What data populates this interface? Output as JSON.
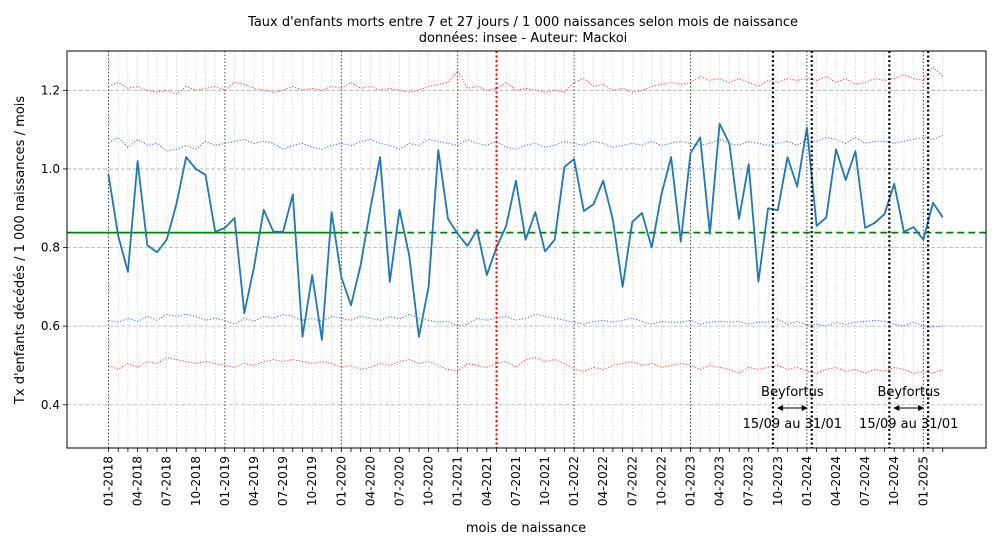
{
  "chart_data": {
    "type": "line",
    "title": "Taux d'enfants morts entre 7 et 27 jours / 1 000 naissances selon mois de naissance",
    "subtitle": "données: insee - Auteur: Mackoi",
    "xlabel": "mois de naissance",
    "ylabel": "Tx d'enfants décédés / 1 000 naissances / mois",
    "ylim": [
      0.29,
      1.3
    ],
    "yticks": [
      "0.4",
      "0.6",
      "0.8",
      "1.0",
      "1.2"
    ],
    "xtick_labels": [
      "01-2018",
      "04-2018",
      "07-2018",
      "10-2018",
      "01-2019",
      "04-2019",
      "07-2019",
      "10-2019",
      "01-2020",
      "04-2020",
      "07-2020",
      "10-2020",
      "01-2021",
      "04-2021",
      "07-2021",
      "10-2021",
      "01-2022",
      "04-2022",
      "07-2022",
      "10-2022",
      "01-2023",
      "04-2023",
      "07-2023",
      "10-2023",
      "01-2024",
      "04-2024",
      "07-2024",
      "10-2024",
      "01-2025"
    ],
    "grid": true,
    "colors": {
      "main": "#1f77b4",
      "mean": "#008000",
      "band_inner": "#4169e1",
      "band_outer": "#ff3b30",
      "marker_red": "#ff0000",
      "vlines": "#000000"
    },
    "mean_value": 0.838,
    "series": [
      {
        "values": [
          0.985,
          0.83,
          0.738,
          1.02,
          0.806,
          0.788,
          0.82,
          0.91,
          1.03,
          1.0,
          0.985,
          0.84,
          0.85,
          0.875,
          0.633,
          0.75,
          0.896,
          0.84,
          0.84,
          0.935,
          0.573,
          0.73,
          0.565,
          0.89,
          0.725,
          0.653,
          0.756,
          0.9,
          1.03,
          0.713,
          0.896,
          0.78,
          0.573,
          0.7,
          1.048,
          0.873,
          0.835,
          0.804,
          0.845,
          0.73,
          0.8,
          0.855,
          0.97,
          0.82,
          0.89,
          0.79,
          0.82,
          1.005,
          1.025,
          0.893,
          0.91,
          0.97,
          0.87,
          0.7,
          0.865,
          0.888,
          0.8,
          0.935,
          1.03,
          0.815,
          1.04,
          1.08,
          0.835,
          1.115,
          1.065,
          0.873,
          1.012,
          0.713,
          0.9,
          0.895,
          1.03,
          0.955,
          1.105,
          0.855,
          0.877,
          1.05,
          0.972,
          1.045,
          0.85,
          0.863,
          0.885,
          0.962,
          0.84,
          0.852,
          0.82,
          0.914,
          0.877
        ]
      },
      {
        "values": [
          1.065,
          1.08,
          1.055,
          1.075,
          1.06,
          1.065,
          1.045,
          1.05,
          1.06,
          1.05,
          1.07,
          1.06,
          1.065,
          1.07,
          1.075,
          1.065,
          1.07,
          1.065,
          1.05,
          1.06,
          1.065,
          1.055,
          1.05,
          1.06,
          1.065,
          1.06,
          1.07,
          1.075,
          1.065,
          1.06,
          1.05,
          1.065,
          1.06,
          1.075,
          1.07,
          1.065,
          1.06,
          1.075,
          1.065,
          1.06,
          1.07,
          1.055,
          1.05,
          1.06,
          1.065,
          1.055,
          1.06,
          1.07,
          1.065,
          1.06,
          1.07,
          1.065,
          1.055,
          1.06,
          1.065,
          1.06,
          1.07,
          1.06,
          1.065,
          1.07,
          1.065,
          1.06,
          1.065,
          1.075,
          1.065,
          1.06,
          1.07,
          1.065,
          1.06,
          1.065,
          1.07,
          1.06,
          1.075,
          1.07,
          1.08,
          1.075,
          1.065,
          1.08,
          1.065,
          1.07,
          1.07,
          1.065,
          1.07,
          1.075,
          1.08,
          1.075,
          1.085
        ]
      },
      {
        "values": [
          0.615,
          0.61,
          0.62,
          0.612,
          0.625,
          0.615,
          0.63,
          0.625,
          0.63,
          0.625,
          0.615,
          0.62,
          0.615,
          0.605,
          0.62,
          0.612,
          0.625,
          0.62,
          0.63,
          0.625,
          0.615,
          0.62,
          0.612,
          0.625,
          0.62,
          0.615,
          0.625,
          0.62,
          0.615,
          0.625,
          0.618,
          0.63,
          0.62,
          0.615,
          0.61,
          0.612,
          0.6,
          0.605,
          0.62,
          0.615,
          0.62,
          0.625,
          0.615,
          0.62,
          0.63,
          0.625,
          0.62,
          0.615,
          0.61,
          0.605,
          0.612,
          0.615,
          0.61,
          0.615,
          0.62,
          0.612,
          0.605,
          0.612,
          0.61,
          0.61,
          0.615,
          0.605,
          0.61,
          0.612,
          0.61,
          0.612,
          0.605,
          0.61,
          0.61,
          0.618,
          0.605,
          0.612,
          0.603,
          0.605,
          0.6,
          0.61,
          0.605,
          0.61,
          0.612,
          0.615,
          0.612,
          0.605,
          0.6,
          0.61,
          0.6,
          0.598,
          0.6
        ]
      },
      {
        "values": [
          1.21,
          1.22,
          1.205,
          1.21,
          1.2,
          1.195,
          1.2,
          1.19,
          1.21,
          1.2,
          1.205,
          1.21,
          1.2,
          1.22,
          1.215,
          1.205,
          1.2,
          1.195,
          1.2,
          1.21,
          1.2,
          1.205,
          1.2,
          1.21,
          1.205,
          1.22,
          1.205,
          1.21,
          1.2,
          1.205,
          1.2,
          1.195,
          1.2,
          1.21,
          1.215,
          1.22,
          1.25,
          1.205,
          1.21,
          1.2,
          1.205,
          1.22,
          1.2,
          1.205,
          1.2,
          1.195,
          1.2,
          1.195,
          1.22,
          1.23,
          1.21,
          1.215,
          1.2,
          1.205,
          1.195,
          1.2,
          1.21,
          1.215,
          1.22,
          1.215,
          1.22,
          1.235,
          1.225,
          1.23,
          1.22,
          1.23,
          1.22,
          1.21,
          1.225,
          1.22,
          1.23,
          1.225,
          1.23,
          1.225,
          1.235,
          1.22,
          1.23,
          1.215,
          1.22,
          1.23,
          1.225,
          1.23,
          1.24,
          1.23,
          1.225,
          1.26,
          1.235
        ]
      },
      {
        "values": [
          0.5,
          0.49,
          0.505,
          0.495,
          0.51,
          0.505,
          0.52,
          0.515,
          0.51,
          0.505,
          0.51,
          0.505,
          0.5,
          0.495,
          0.505,
          0.5,
          0.51,
          0.515,
          0.51,
          0.515,
          0.51,
          0.505,
          0.51,
          0.505,
          0.495,
          0.5,
          0.49,
          0.495,
          0.505,
          0.5,
          0.51,
          0.515,
          0.505,
          0.51,
          0.5,
          0.49,
          0.485,
          0.505,
          0.5,
          0.495,
          0.505,
          0.51,
          0.495,
          0.515,
          0.52,
          0.51,
          0.515,
          0.505,
          0.49,
          0.485,
          0.495,
          0.49,
          0.5,
          0.505,
          0.51,
          0.5,
          0.505,
          0.495,
          0.5,
          0.505,
          0.5,
          0.49,
          0.5,
          0.495,
          0.49,
          0.48,
          0.495,
          0.49,
          0.495,
          0.5,
          0.49,
          0.495,
          0.485,
          0.48,
          0.49,
          0.495,
          0.485,
          0.49,
          0.48,
          0.49,
          0.485,
          0.495,
          0.49,
          0.48,
          0.485,
          0.48,
          0.49
        ]
      }
    ],
    "annotations": [
      {
        "text": "Beyfortus",
        "subtext": "15/09 au 31/01"
      },
      {
        "text": "Beyfortus",
        "subtext": "15/09 au 31/01"
      }
    ]
  }
}
